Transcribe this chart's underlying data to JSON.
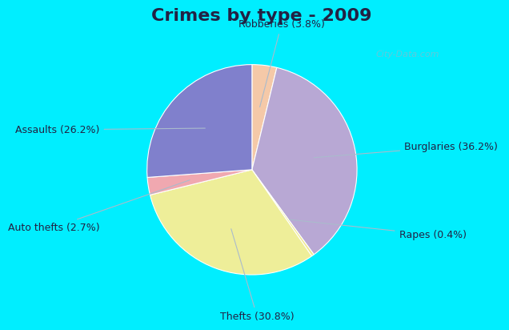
{
  "title": "Crimes by type - 2009",
  "ordered_labels": [
    "Robberies",
    "Burglaries",
    "Rapes",
    "Thefts",
    "Auto thefts",
    "Assaults"
  ],
  "ordered_values": [
    3.8,
    36.2,
    0.4,
    30.8,
    2.7,
    26.2
  ],
  "ordered_colors": [
    "#f5c9a8",
    "#b8a8d4",
    "#f0e890",
    "#eeee99",
    "#f0a8b0",
    "#8080cc"
  ],
  "background_cyan": "#00eeff",
  "background_body": "#c8ecd8",
  "title_fontsize": 16,
  "label_fontsize": 9,
  "label_color": "#222244",
  "line_color": "#aabbcc",
  "title_color": "#222244",
  "watermark": "City-Data.com",
  "label_positions": [
    {
      "text": "Robberies (3.8%)",
      "xt": 0.28,
      "yt": 1.38,
      "ha": "center"
    },
    {
      "text": "Burglaries (36.2%)",
      "xt": 1.45,
      "yt": 0.22,
      "ha": "left"
    },
    {
      "text": "Rapes (0.4%)",
      "xt": 1.4,
      "yt": -0.62,
      "ha": "left"
    },
    {
      "text": "Thefts (30.8%)",
      "xt": 0.05,
      "yt": -1.4,
      "ha": "center"
    },
    {
      "text": "Auto thefts (2.7%)",
      "xt": -1.45,
      "yt": -0.55,
      "ha": "right"
    },
    {
      "text": "Assaults (26.2%)",
      "xt": -1.45,
      "yt": 0.38,
      "ha": "right"
    }
  ]
}
